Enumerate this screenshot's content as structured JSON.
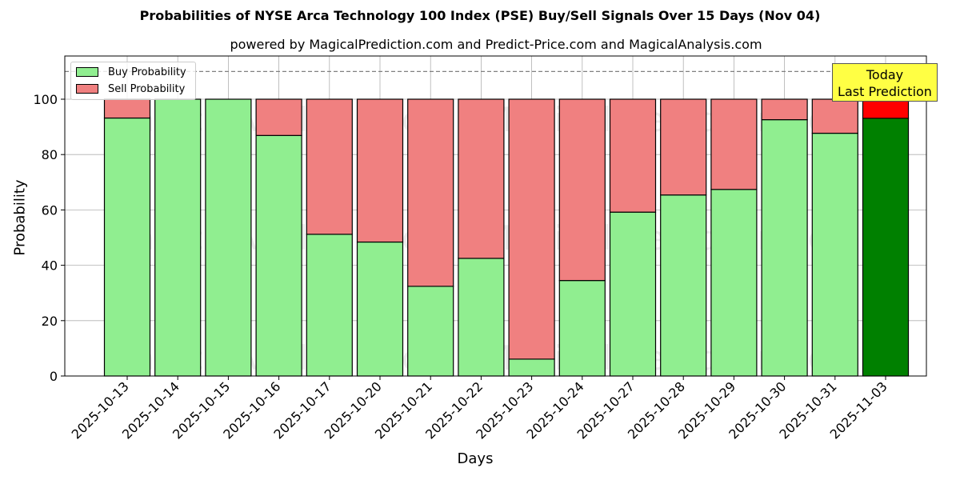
{
  "chart_data": {
    "type": "bar",
    "stacked": true,
    "title": "Probabilities of NYSE Arca Technology 100 Index (PSE) Buy/Sell Signals Over 15 Days (Nov 04)",
    "subtitle": "powered by MagicalPrediction.com and Predict-Price.com and MagicalAnalysis.com",
    "xlabel": "Days",
    "ylabel": "Probability",
    "ylim": [
      0,
      115
    ],
    "yticks": [
      0,
      20,
      40,
      60,
      80,
      100
    ],
    "grid": true,
    "legend_position": "upper left",
    "reference_line": {
      "y": 110,
      "style": "dashed",
      "color": "#808080"
    },
    "categories": [
      "2025-10-13",
      "2025-10-14",
      "2025-10-15",
      "2025-10-16",
      "2025-10-17",
      "2025-10-20",
      "2025-10-21",
      "2025-10-22",
      "2025-10-23",
      "2025-10-24",
      "2025-10-27",
      "2025-10-28",
      "2025-10-29",
      "2025-10-30",
      "2025-10-31",
      "2025-11-03"
    ],
    "series": [
      {
        "name": "Buy Probability",
        "color": "#90ee90",
        "values": [
          93.2,
          100,
          100,
          86.9,
          51.2,
          48.4,
          32.4,
          42.5,
          6.1,
          34.5,
          59.2,
          65.4,
          67.4,
          92.6,
          87.7,
          93.1
        ]
      },
      {
        "name": "Sell Probability",
        "color": "#f08080",
        "values": [
          6.8,
          0,
          0,
          13.1,
          48.8,
          51.6,
          67.6,
          57.5,
          93.9,
          65.5,
          40.8,
          34.6,
          32.6,
          7.4,
          12.3,
          6.9
        ]
      }
    ],
    "highlight": {
      "index": 15,
      "buy_color": "#008000",
      "sell_color": "#ff0000"
    },
    "annotation": {
      "line1": "Today",
      "line2": "Last Prediction",
      "background": "#ffff44"
    },
    "watermarks": [
      "MagicalAnalysis.com",
      "MagicalPrediction.com"
    ]
  }
}
